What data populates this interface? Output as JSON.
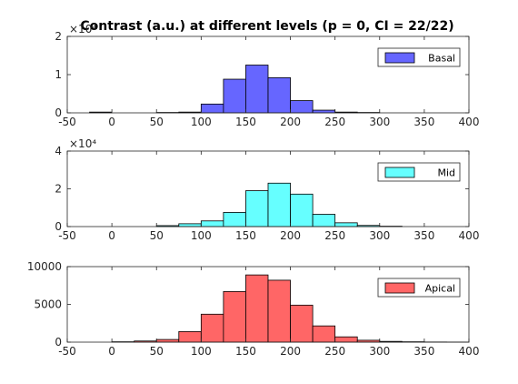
{
  "chart_data": {
    "type": "bar",
    "title": "Contrast (a.u.) at different levels (p = 0, CI = 22/22)",
    "bin_width": 25,
    "bin_starts": [
      -25,
      0,
      25,
      50,
      75,
      100,
      125,
      150,
      175,
      200,
      225,
      250,
      275,
      300,
      325,
      350,
      375
    ],
    "panels": [
      {
        "name": "Basal",
        "color": "#6666ff",
        "xlim": [
          -50,
          400
        ],
        "ylim": [
          0,
          2
        ],
        "y_exponent_label": "×10⁴",
        "xticks": [
          "-50",
          "0",
          "50",
          "100",
          "150",
          "200",
          "250",
          "300",
          "350",
          "400"
        ],
        "yticks": [
          "0",
          "1",
          "2"
        ],
        "values": [
          0.02,
          0,
          0,
          0.01,
          0.02,
          0.23,
          0.88,
          1.25,
          0.92,
          0.32,
          0.07,
          0.02,
          0.01,
          0,
          0,
          0,
          0
        ]
      },
      {
        "name": "Mid",
        "color": "#66ffff",
        "xlim": [
          -50,
          400
        ],
        "ylim": [
          0,
          4
        ],
        "y_exponent_label": "×10⁴",
        "xticks": [
          "-50",
          "0",
          "50",
          "100",
          "150",
          "200",
          "250",
          "300",
          "350",
          "400"
        ],
        "yticks": [
          "0",
          "2",
          "4"
        ],
        "values": [
          0,
          0,
          0,
          0.05,
          0.15,
          0.3,
          0.75,
          1.9,
          2.3,
          1.72,
          0.65,
          0.2,
          0.06,
          0.02,
          0,
          0,
          0
        ]
      },
      {
        "name": "Apical",
        "color": "#ff6666",
        "xlim": [
          -50,
          400
        ],
        "ylim": [
          0,
          10000
        ],
        "y_exponent_label": "",
        "xticks": [
          "-50",
          "0",
          "50",
          "100",
          "150",
          "200",
          "250",
          "300",
          "350",
          "400"
        ],
        "yticks": [
          "0",
          "5000",
          "10000"
        ],
        "values": [
          0,
          50,
          150,
          350,
          1400,
          3700,
          6700,
          8900,
          8200,
          4900,
          2150,
          700,
          250,
          100,
          50,
          20,
          10
        ]
      }
    ]
  }
}
